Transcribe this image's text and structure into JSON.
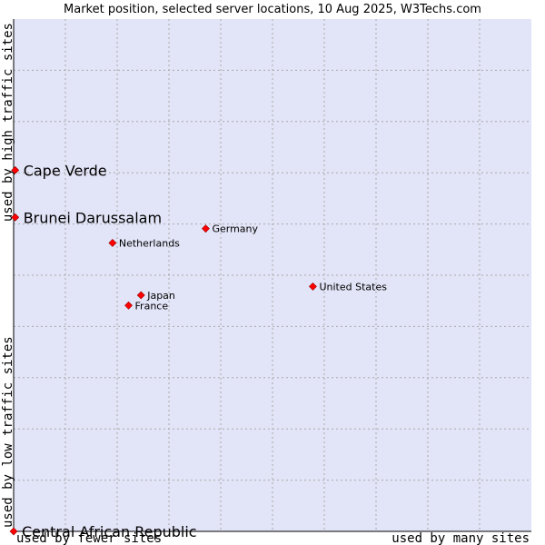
{
  "chart_data": {
    "type": "scatter",
    "title": "Market position, selected server locations, 10 Aug 2025, W3Techs.com",
    "x_axis": {
      "low_label": "used by fewer sites",
      "high_label": "used by many sites",
      "range": [
        0,
        100
      ]
    },
    "y_axis": {
      "low_label": "used by low traffic sites",
      "high_label": "used by high traffic sites",
      "range": [
        0,
        100
      ]
    },
    "grid": true,
    "colors": {
      "plot_background": "#e2e4f7",
      "grid": "#aaaaaa",
      "marker": "#ff0000",
      "marker_outline": "#990000"
    },
    "points": [
      {
        "name": "Cape Verde",
        "x": 0.3,
        "y": 70.5,
        "highlight": true
      },
      {
        "name": "Brunei Darussalam",
        "x": 0.3,
        "y": 61.3,
        "highlight": true
      },
      {
        "name": "Central African Republic",
        "x": 0.0,
        "y": 0.0,
        "highlight": true
      },
      {
        "name": "Germany",
        "x": 37.1,
        "y": 59.1,
        "highlight": false
      },
      {
        "name": "Netherlands",
        "x": 19.1,
        "y": 56.3,
        "highlight": false
      },
      {
        "name": "United States",
        "x": 57.8,
        "y": 47.8,
        "highlight": false
      },
      {
        "name": "Japan",
        "x": 24.6,
        "y": 46.1,
        "highlight": false
      },
      {
        "name": "France",
        "x": 22.2,
        "y": 44.1,
        "highlight": false
      }
    ]
  }
}
